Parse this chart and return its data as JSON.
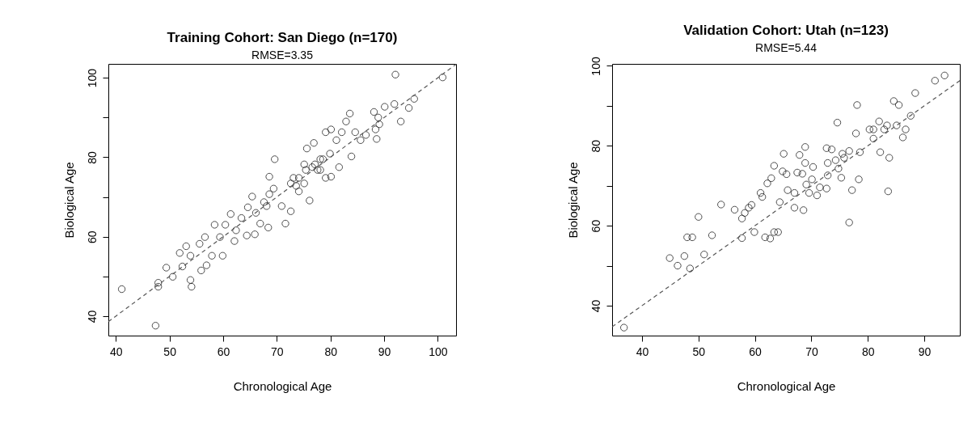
{
  "chart_data": [
    {
      "type": "scatter",
      "title": "Training Cohort: San Diego (n=170)",
      "subtitle": "RMSE=3.35",
      "xlabel": "Chronological Age",
      "ylabel": "Biological Age",
      "xlim": [
        38.6,
        103.4
      ],
      "ylim": [
        35.1,
        103.5
      ],
      "xticks": [
        40,
        50,
        60,
        70,
        80,
        90,
        100
      ],
      "yticks": [
        40,
        {
          "value": 50,
          "label": null
        },
        60,
        {
          "value": 70,
          "label": null
        },
        80,
        {
          "value": 90,
          "label": null
        },
        100
      ],
      "grid": false,
      "series": [
        {
          "type": "scatter",
          "marker": "circle",
          "color": "#000000",
          "x": [
            41.1,
            47.4,
            47.9,
            47.9,
            49.4,
            50.6,
            51.9,
            52.4,
            53.1,
            53.9,
            53.9,
            54.1,
            55.9,
            55.6,
            56.6,
            56.9,
            57.9,
            58.4,
            59.4,
            59.9,
            60.4,
            61.4,
            62.1,
            62.4,
            63.4,
            64.4,
            64.6,
            65.4,
            65.9,
            66.1,
            66.9,
            67.6,
            68.1,
            68.4,
            68.6,
            68.6,
            69.6,
            69.4,
            70.9,
            71.6,
            72.6,
            73.1,
            72.6,
            73.6,
            74.1,
            75.1,
            76.1,
            75.4,
            75.6,
            76.9,
            77.1,
            78.1,
            78.6,
            79.1,
            80.1,
            79.9,
            80.1,
            81.1,
            81.6,
            82.1,
            82.9,
            83.6,
            83.9,
            84.6,
            85.6,
            86.6,
            88.1,
            88.4,
            88.6,
            88.9,
            89.1,
            90.1,
            91.9,
            92.1,
            93.1,
            94.6,
            95.6,
            100.9,
            74.1,
            75.1,
            76.6,
            78.1,
            79.1,
            77.6
          ],
          "values": [
            46.8,
            37.6,
            48.4,
            47.4,
            52.2,
            49.9,
            55.9,
            52.5,
            57.6,
            55.2,
            49.1,
            47.4,
            51.5,
            58.2,
            59.9,
            52.8,
            55.2,
            63.0,
            59.9,
            55.2,
            63.0,
            65.7,
            58.9,
            61.6,
            64.7,
            60.3,
            67.4,
            70.1,
            60.6,
            66.0,
            63.3,
            68.7,
            67.7,
            62.3,
            70.7,
            75.1,
            79.5,
            72.1,
            67.7,
            63.3,
            66.4,
            74.8,
            73.4,
            72.8,
            71.4,
            73.4,
            69.1,
            76.8,
            82.2,
            83.6,
            78.2,
            76.8,
            79.5,
            86.3,
            87.0,
            80.9,
            75.1,
            84.3,
            77.5,
            86.3,
            89.0,
            91.0,
            80.2,
            86.3,
            84.3,
            85.6,
            91.4,
            87.0,
            84.6,
            90.0,
            88.3,
            92.7,
            93.4,
            100.8,
            89.0,
            92.4,
            94.7,
            100.1,
            74.8,
            78.2,
            77.5,
            79.5,
            74.8,
            76.8
          ]
        },
        {
          "type": "line",
          "color": "#555555",
          "line_style": "dashed",
          "x": [
            38.6,
            103.4
          ],
          "values": [
            38.6,
            103.4
          ]
        }
      ]
    },
    {
      "type": "scatter",
      "title": "Validation Cohort: Utah (n=123)",
      "subtitle": "RMSE=5.44",
      "xlabel": "Chronological Age",
      "ylabel": "Biological Age",
      "xlim": [
        34.7,
        96.3
      ],
      "ylim": [
        32.5,
        100.5
      ],
      "xticks": [
        40,
        50,
        60,
        70,
        80,
        90
      ],
      "yticks": [
        40,
        {
          "value": 50,
          "label": null
        },
        60,
        {
          "value": 70,
          "label": null
        },
        80,
        {
          "value": 90,
          "label": null
        },
        100
      ],
      "grid": false,
      "series": [
        {
          "type": "scatter",
          "marker": "circle",
          "color": "#000000",
          "x": [
            36.8,
            44.9,
            46.3,
            47.5,
            48.5,
            48.0,
            48.9,
            50.0,
            51.0,
            52.4,
            54.0,
            56.4,
            57.7,
            57.7,
            58.2,
            58.9,
            59.4,
            59.9,
            61.0,
            61.3,
            61.8,
            62.7,
            63.4,
            64.1,
            62.2,
            62.9,
            63.4,
            64.4,
            64.9,
            65.1,
            65.6,
            65.8,
            67.0,
            67.0,
            67.5,
            67.9,
            68.4,
            68.6,
            68.9,
            68.9,
            69.1,
            69.6,
            70.1,
            70.3,
            71.0,
            71.5,
            72.7,
            72.9,
            72.9,
            72.7,
            73.6,
            74.3,
            74.8,
            75.3,
            75.5,
            74.6,
            75.8,
            76.7,
            76.7,
            77.2,
            77.9,
            78.4,
            78.1,
            78.6,
            80.3,
            81.0,
            82.0,
            82.2,
            83.4,
            83.8,
            83.6,
            84.6,
            85.1,
            85.5,
            86.2,
            86.7,
            87.6,
            88.4,
            91.9,
            93.6,
            81.0,
            82.9
          ],
          "values": [
            34.5,
            51.9,
            50.0,
            52.4,
            49.3,
            57.1,
            57.1,
            62.2,
            52.8,
            57.6,
            65.3,
            64.0,
            56.9,
            61.8,
            63.2,
            64.5,
            65.2,
            58.4,
            68.2,
            67.2,
            57.1,
            56.8,
            58.4,
            58.4,
            70.6,
            71.9,
            75.0,
            65.9,
            73.6,
            78.0,
            72.9,
            68.9,
            64.5,
            68.2,
            73.3,
            77.7,
            73.0,
            63.9,
            79.7,
            75.7,
            70.3,
            68.2,
            71.6,
            74.7,
            67.6,
            69.6,
            69.3,
            75.7,
            72.6,
            79.4,
            79.1,
            76.4,
            74.3,
            72.0,
            78.0,
            85.8,
            77.0,
            78.7,
            60.8,
            68.9,
            83.1,
            71.6,
            90.2,
            78.4,
            84.1,
            81.8,
            86.1,
            78.4,
            85.1,
            77.0,
            68.6,
            91.2,
            85.1,
            90.2,
            82.1,
            84.1,
            87.5,
            93.2,
            96.3,
            97.6,
            84.1,
            84.1
          ]
        },
        {
          "type": "line",
          "color": "#555555",
          "line_style": "dashed",
          "x": [
            34.7,
            96.3
          ],
          "values": [
            34.7,
            96.3
          ]
        }
      ]
    }
  ]
}
